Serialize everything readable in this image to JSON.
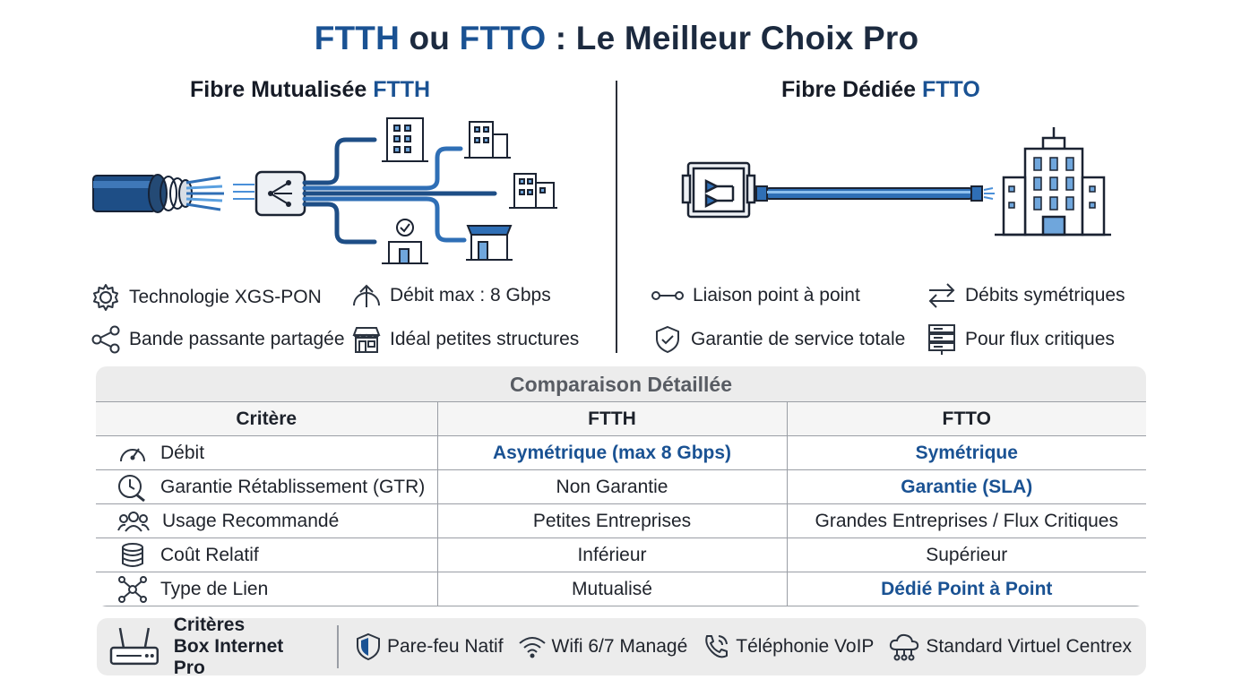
{
  "header": {
    "title_a": "FTTH",
    "title_b": " ou ",
    "title_c": "FTTO",
    "title_d": " : Le Meilleur Choix Pro"
  },
  "ftth": {
    "title_prefix": "Fibre Mutualisée ",
    "title_accent": "FTTH",
    "features": [
      {
        "icon": "gear-icon",
        "text": "Technologie XGS-PON"
      },
      {
        "icon": "arrow-up-icon",
        "text": "Débit max : 8 Gbps"
      },
      {
        "icon": "share-icon",
        "text": "Bande passante partagée"
      },
      {
        "icon": "shop-icon",
        "text": "Idéal petites structures"
      }
    ]
  },
  "ftto": {
    "title_prefix": "Fibre Dédiée ",
    "title_accent": "FTTO",
    "features": [
      {
        "icon": "point-to-point-icon",
        "text": "Liaison point à point"
      },
      {
        "icon": "swap-arrows-icon",
        "text": "Débits symétriques"
      },
      {
        "icon": "shield-check-icon",
        "text": "Garantie de service totale"
      },
      {
        "icon": "server-icon",
        "text": "Pour flux critiques"
      }
    ]
  },
  "comparison": {
    "heading": "Comparaison Détaillée",
    "columns": [
      "Critère",
      "FTTH",
      "FTTO"
    ],
    "rows": [
      {
        "icon": "speedometer-icon",
        "critere": "Débit",
        "ftth": "Asymétrique (max 8 Gbps)",
        "ftto": "Symétrique"
      },
      {
        "icon": "clock-wrench-icon",
        "critere": "Garantie Rétablissement (GTR)",
        "ftth": "Non Garantie",
        "ftto": "Garantie (SLA)"
      },
      {
        "icon": "users-icon",
        "critere": "Usage Recommandé",
        "ftth": "Petites Entreprises",
        "ftto": "Grandes Entreprises / Flux Critiques"
      },
      {
        "icon": "coins-icon",
        "critere": "Coût Relatif",
        "ftth": "Inférieur",
        "ftto": "Supérieur"
      },
      {
        "icon": "network-node-icon",
        "critere": "Type de Lien",
        "ftth": "Mutualisé",
        "ftto": "Dédié Point à Point"
      }
    ]
  },
  "footer": {
    "title_line1": "Critères",
    "title_line2": "Box Internet Pro",
    "items": [
      {
        "icon": "shield-icon",
        "text": "Pare-feu Natif"
      },
      {
        "icon": "wifi-icon",
        "text": "Wifi 6/7 Managé"
      },
      {
        "icon": "phone-icon",
        "text": "Téléphonie VoIP"
      },
      {
        "icon": "cloud-network-icon",
        "text": "Standard Virtuel Centrex"
      }
    ]
  },
  "colors": {
    "accent_blue": "#1a5293",
    "title_dark": "#1c2a3f",
    "panel_grey": "#ececec",
    "border_grey": "#9a9ea5"
  }
}
